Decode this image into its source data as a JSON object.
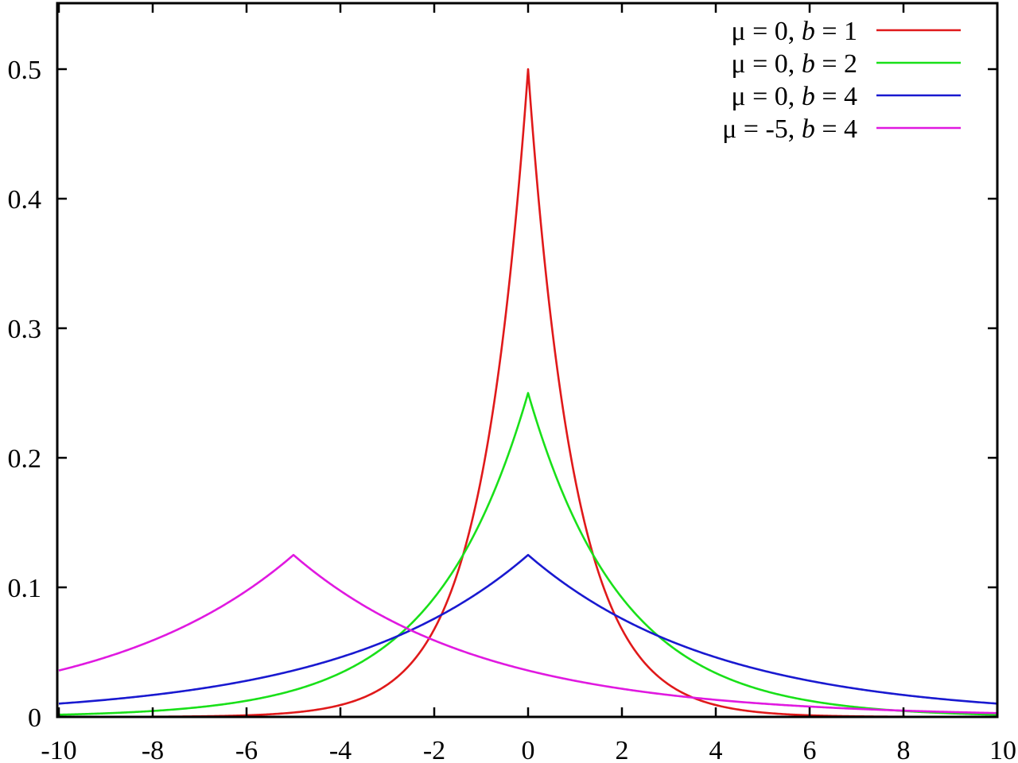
{
  "chart_data": {
    "type": "line",
    "title": "",
    "xlabel": "",
    "ylabel": "",
    "xlim": [
      -10,
      10
    ],
    "ylim": [
      0,
      0.55
    ],
    "grid": false,
    "legend_position": "top-right",
    "x_ticks": [
      -10,
      -8,
      -6,
      -4,
      -2,
      0,
      2,
      4,
      6,
      8,
      10
    ],
    "x_tick_labels": [
      "-10",
      "-8",
      "-6",
      "-4",
      "-2",
      "0",
      "2",
      "4",
      "6",
      "8",
      "10"
    ],
    "y_ticks": [
      0,
      0.1,
      0.2,
      0.3,
      0.4,
      0.5
    ],
    "y_tick_labels": [
      "0",
      "0.1",
      "0.2",
      "0.3",
      "0.4",
      "0.5"
    ],
    "series": [
      {
        "name": "μ =  0, b = 1",
        "label_prefix": "μ =  0, ",
        "label_var": "b",
        "label_suffix": " = 1",
        "mu": 0,
        "b": 1,
        "color": "#e0191a",
        "x": [
          -10,
          -8,
          -6,
          -4,
          -3,
          -2,
          -1.5,
          -1,
          -0.5,
          0,
          0.5,
          1,
          1.5,
          2,
          3,
          4,
          6,
          8,
          10
        ],
        "y": [
          2.27e-05,
          0.000168,
          0.00124,
          0.00916,
          0.0249,
          0.0677,
          0.1116,
          0.1839,
          0.3033,
          0.5,
          0.3033,
          0.1839,
          0.1116,
          0.0677,
          0.0249,
          0.00916,
          0.00124,
          0.000168,
          2.27e-05
        ]
      },
      {
        "name": "μ =  0, b = 2",
        "label_prefix": "μ =  0, ",
        "label_var": "b",
        "label_suffix": " = 2",
        "mu": 0,
        "b": 2,
        "color": "#19e019",
        "x": [
          -10,
          -8,
          -6,
          -4,
          -3,
          -2,
          -1,
          0,
          1,
          2,
          3,
          4,
          6,
          8,
          10
        ],
        "y": [
          0.00168,
          0.00458,
          0.01245,
          0.0338,
          0.0558,
          0.092,
          0.1516,
          0.25,
          0.1516,
          0.092,
          0.0558,
          0.0338,
          0.01245,
          0.00458,
          0.00168
        ]
      },
      {
        "name": "μ =  0, b = 4",
        "label_prefix": "μ =  0, ",
        "label_var": "b",
        "label_suffix": " = 4",
        "mu": 0,
        "b": 4,
        "color": "#1919d0",
        "x": [
          -10,
          -8,
          -6,
          -4,
          -2,
          0,
          2,
          4,
          6,
          8,
          10
        ],
        "y": [
          0.01026,
          0.01692,
          0.0279,
          0.046,
          0.0758,
          0.125,
          0.0758,
          0.046,
          0.0279,
          0.01692,
          0.01026
        ]
      },
      {
        "name": "μ = -5, b = 4",
        "label_prefix": "μ = -5, ",
        "label_var": "b",
        "label_suffix": " = 4",
        "mu": -5,
        "b": 4,
        "color": "#e019e0",
        "x": [
          -10,
          -8,
          -6,
          -5,
          -4,
          -2,
          0,
          2,
          4,
          6,
          8,
          10
        ],
        "y": [
          0.0358,
          0.059,
          0.0973,
          0.125,
          0.0973,
          0.059,
          0.0358,
          0.0217,
          0.01318,
          0.008,
          0.00485,
          0.00294
        ]
      }
    ]
  }
}
